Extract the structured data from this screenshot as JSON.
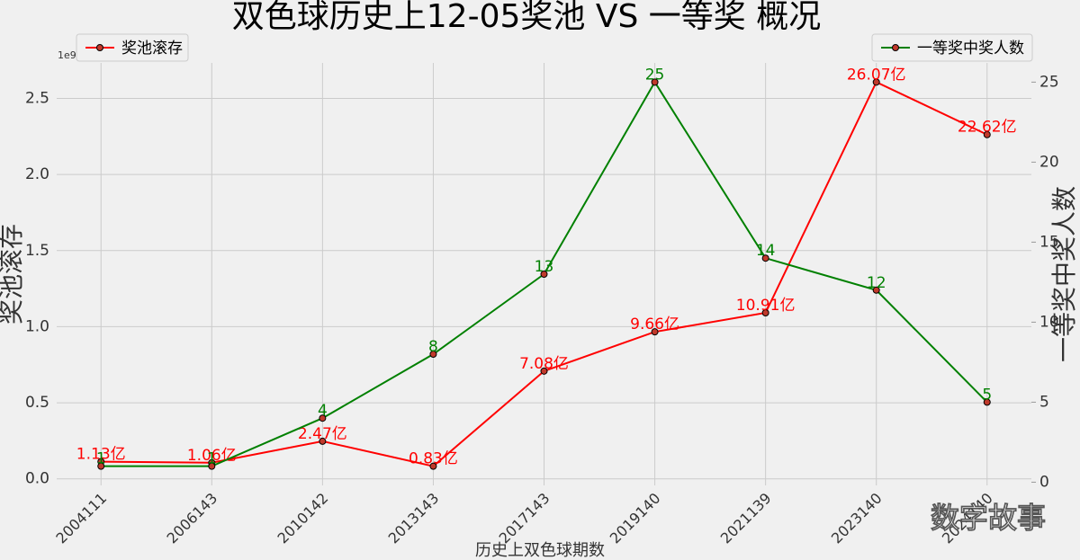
{
  "chart_data": {
    "type": "line",
    "title": "双色球历史上12-05奖池 VS 一等奖 概况",
    "x_label": "历史上双色球期数",
    "y_label": "奖池滚存",
    "y2_label": "一等奖中奖人数",
    "y_offset_text": "1e9",
    "watermark": "数字故事",
    "categories": [
      "2004111",
      "2006143",
      "2010142",
      "2013143",
      "2017143",
      "2019140",
      "2021139",
      "2023140",
      "2024140"
    ],
    "series": [
      {
        "name": "奖池滚存",
        "color": "#ff0000",
        "legend_loc": "upper left",
        "values": [
          113000000,
          106000000,
          247000000,
          83000000,
          708000000,
          966000000,
          1091000000,
          2607000000,
          2262000000
        ],
        "value_labels": [
          "1.13亿",
          "1.06亿",
          "2.47亿",
          "0.83亿",
          "7.08亿",
          "9.66亿",
          "10.91亿",
          "26.07亿",
          "22.62亿"
        ]
      },
      {
        "name": "一等奖中奖人数",
        "color": "#008000",
        "axis": "y2",
        "legend_loc": "upper right",
        "values": [
          1,
          1,
          4,
          8,
          13,
          25,
          14,
          12,
          5
        ]
      }
    ],
    "ylim": [
      -43000000,
      2733000000
    ],
    "yticks": [
      {
        "value": 0,
        "label": "0.0"
      },
      {
        "value": 500000000,
        "label": "0.5"
      },
      {
        "value": 1000000000,
        "label": "1.0"
      },
      {
        "value": 1500000000,
        "label": "1.5"
      },
      {
        "value": 2000000000,
        "label": "2.0"
      },
      {
        "value": 2500000000,
        "label": "2.5"
      }
    ],
    "y2lim": [
      -0.2,
      26.2
    ],
    "y2ticks": [
      0,
      5,
      10,
      15,
      20,
      25
    ],
    "grid": true
  }
}
